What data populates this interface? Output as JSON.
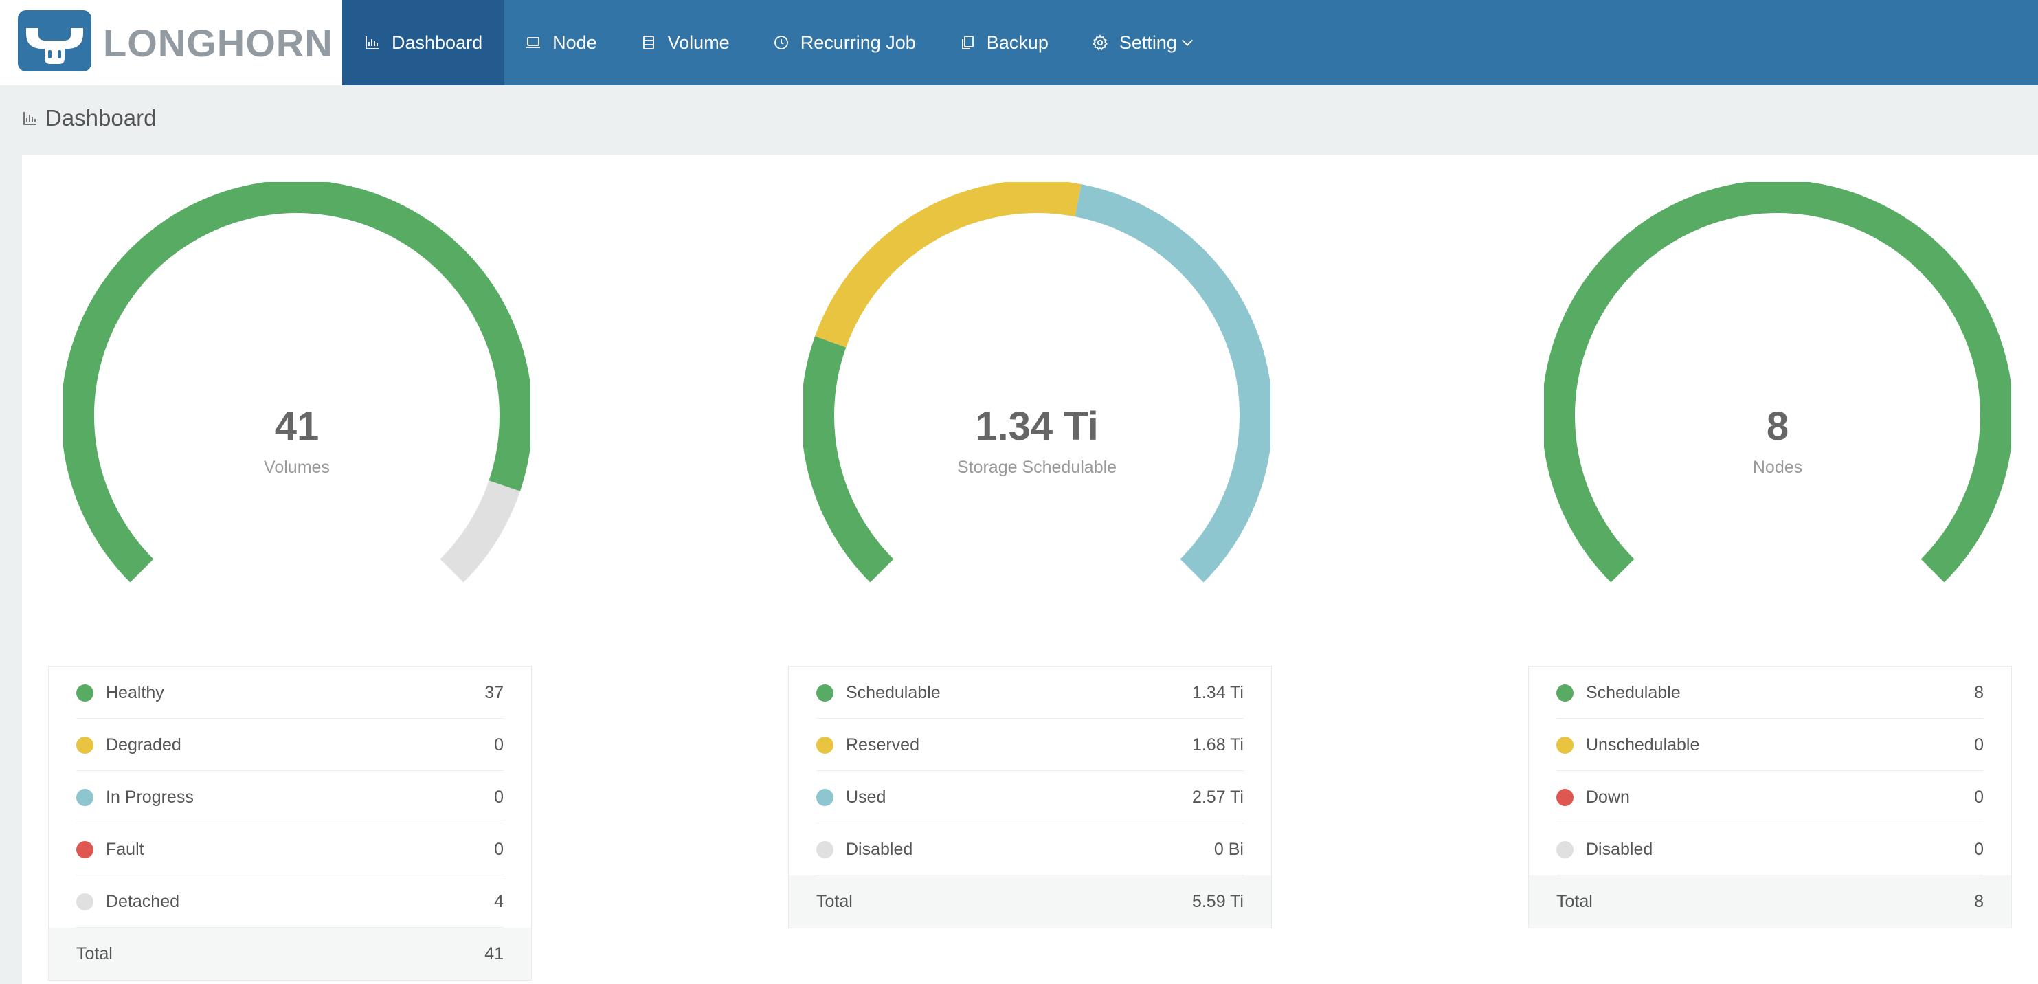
{
  "brand": {
    "name": "LONGHORN"
  },
  "nav": {
    "items": [
      {
        "label": "Dashboard",
        "icon": "bar-chart-icon"
      },
      {
        "label": "Node",
        "icon": "laptop-icon"
      },
      {
        "label": "Volume",
        "icon": "database-icon"
      },
      {
        "label": "Recurring Job",
        "icon": "clock-icon"
      },
      {
        "label": "Backup",
        "icon": "copy-icon"
      },
      {
        "label": "Setting",
        "icon": "gear-icon"
      }
    ]
  },
  "page": {
    "title": "Dashboard"
  },
  "colors": {
    "green": "#57ab63",
    "yellow": "#e8c441",
    "blue": "#8ec6cf",
    "red": "#de5751",
    "gray": "#e0e0e0",
    "header": "#3274a6",
    "header_active": "#235b8e"
  },
  "cards": [
    {
      "gauge": {
        "value": "41",
        "label": "Volumes"
      },
      "chart_data": {
        "type": "gauge",
        "segments": [
          {
            "name": "Healthy",
            "value": 37,
            "color": "#57ab63"
          },
          {
            "name": "Detached",
            "value": 4,
            "color": "#e0e0e0"
          }
        ]
      },
      "rows": [
        {
          "label": "Healthy",
          "value": "37",
          "color": "#57ab63"
        },
        {
          "label": "Degraded",
          "value": "0",
          "color": "#e8c441"
        },
        {
          "label": "In Progress",
          "value": "0",
          "color": "#8ec6cf"
        },
        {
          "label": "Fault",
          "value": "0",
          "color": "#de5751"
        },
        {
          "label": "Detached",
          "value": "4",
          "color": "#e0e0e0"
        }
      ],
      "total": {
        "label": "Total",
        "value": "41"
      }
    },
    {
      "gauge": {
        "value": "1.34 Ti",
        "label": "Storage Schedulable"
      },
      "chart_data": {
        "type": "gauge",
        "segments": [
          {
            "name": "Schedulable",
            "value": 1.34,
            "color": "#57ab63"
          },
          {
            "name": "Reserved",
            "value": 1.68,
            "color": "#e8c441"
          },
          {
            "name": "Used",
            "value": 2.57,
            "color": "#8ec6cf"
          }
        ]
      },
      "rows": [
        {
          "label": "Schedulable",
          "value": "1.34 Ti",
          "color": "#57ab63"
        },
        {
          "label": "Reserved",
          "value": "1.68 Ti",
          "color": "#e8c441"
        },
        {
          "label": "Used",
          "value": "2.57 Ti",
          "color": "#8ec6cf"
        },
        {
          "label": "Disabled",
          "value": "0 Bi",
          "color": "#e0e0e0"
        }
      ],
      "total": {
        "label": "Total",
        "value": "5.59 Ti"
      }
    },
    {
      "gauge": {
        "value": "8",
        "label": "Nodes"
      },
      "chart_data": {
        "type": "gauge",
        "segments": [
          {
            "name": "Schedulable",
            "value": 8,
            "color": "#57ab63"
          }
        ]
      },
      "rows": [
        {
          "label": "Schedulable",
          "value": "8",
          "color": "#57ab63"
        },
        {
          "label": "Unschedulable",
          "value": "0",
          "color": "#e8c441"
        },
        {
          "label": "Down",
          "value": "0",
          "color": "#de5751"
        },
        {
          "label": "Disabled",
          "value": "0",
          "color": "#e0e0e0"
        }
      ],
      "total": {
        "label": "Total",
        "value": "8"
      }
    }
  ]
}
